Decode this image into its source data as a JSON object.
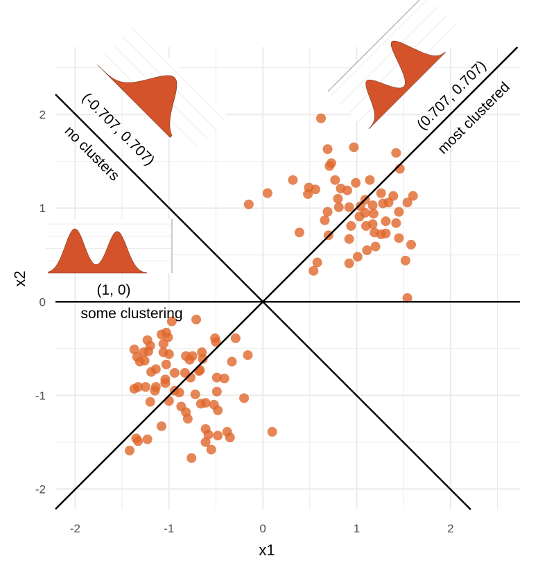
{
  "chart_data": {
    "type": "scatter",
    "xlabel": "x1",
    "ylabel": "x2",
    "xlim": [
      -2.21,
      2.74
    ],
    "ylim": [
      -2.22,
      2.72
    ],
    "xticks": [
      "-2",
      "-1",
      "0",
      "1",
      "2"
    ],
    "xtick_values": [
      -2,
      -1,
      0,
      1,
      2
    ],
    "yticks": [
      "-2",
      "-1",
      "0",
      "1",
      "2"
    ],
    "ytick_values": [
      -2,
      -1,
      0,
      1,
      2
    ],
    "grid": true,
    "colors": {
      "points": "#E0662A",
      "density": "#D4532A",
      "lines": "#000000",
      "grid": "#EBEBEB"
    },
    "reference_lines": [
      {
        "direction": [
          -0.707,
          0.707
        ],
        "label": "(-0.707, 0.707)",
        "caption": "no clusters",
        "density": "unimodal"
      },
      {
        "direction": [
          0.707,
          0.707
        ],
        "label": "(0.707, 0.707)",
        "caption": "most clustered",
        "density": "bimodal-separated"
      },
      {
        "direction": [
          1,
          0
        ],
        "label": "(1, 0)",
        "caption": "some clustering",
        "density": "bimodal-overlapping"
      }
    ],
    "points": [
      [
        0.62,
        1.96
      ],
      [
        0.69,
        1.63
      ],
      [
        0.97,
        1.65
      ],
      [
        1.42,
        1.59
      ],
      [
        0.73,
        1.48
      ],
      [
        0.71,
        1.45
      ],
      [
        1.46,
        1.42
      ],
      [
        0.32,
        1.3
      ],
      [
        0.77,
        1.3
      ],
      [
        0.99,
        1.27
      ],
      [
        1.14,
        1.3
      ],
      [
        0.49,
        1.22
      ],
      [
        0.56,
        1.2
      ],
      [
        0.48,
        1.15
      ],
      [
        0.83,
        1.21
      ],
      [
        0.9,
        1.19
      ],
      [
        0.05,
        1.16
      ],
      [
        -0.15,
        1.04
      ],
      [
        0.8,
        1.1
      ],
      [
        1.26,
        1.16
      ],
      [
        1.39,
        1.13
      ],
      [
        1.6,
        1.13
      ],
      [
        0.81,
        1.01
      ],
      [
        0.92,
        1.01
      ],
      [
        1.09,
        1.09
      ],
      [
        1.17,
        1.03
      ],
      [
        1.04,
        1.02
      ],
      [
        1.28,
        1.05
      ],
      [
        1.34,
        1.06
      ],
      [
        1.54,
        1.06
      ],
      [
        0.69,
        0.96
      ],
      [
        1.03,
        0.91
      ],
      [
        1.09,
        0.95
      ],
      [
        1.18,
        0.94
      ],
      [
        1.45,
        0.96
      ],
      [
        0.66,
        0.87
      ],
      [
        0.94,
        0.81
      ],
      [
        1.1,
        0.81
      ],
      [
        1.17,
        0.83
      ],
      [
        1.31,
        0.86
      ],
      [
        1.42,
        0.84
      ],
      [
        0.39,
        0.74
      ],
      [
        0.7,
        0.71
      ],
      [
        1.19,
        0.74
      ],
      [
        1.26,
        0.72
      ],
      [
        1.31,
        0.73
      ],
      [
        0.92,
        0.67
      ],
      [
        1.45,
        0.68
      ],
      [
        1.2,
        0.59
      ],
      [
        1.11,
        0.55
      ],
      [
        1.58,
        0.61
      ],
      [
        1.01,
        0.48
      ],
      [
        1.52,
        0.44
      ],
      [
        0.58,
        0.42
      ],
      [
        0.92,
        0.41
      ],
      [
        0.54,
        0.33
      ],
      [
        1.54,
        0.04
      ],
      [
        -0.97,
        -0.21
      ],
      [
        -0.71,
        -0.19
      ],
      [
        -1.08,
        -0.35
      ],
      [
        -1.03,
        -0.33
      ],
      [
        -1.01,
        -0.38
      ],
      [
        -1.23,
        -0.41
      ],
      [
        -1.2,
        -0.47
      ],
      [
        -1.06,
        -0.45
      ],
      [
        -0.51,
        -0.39
      ],
      [
        -0.5,
        -0.43
      ],
      [
        -0.29,
        -0.39
      ],
      [
        -1.37,
        -0.51
      ],
      [
        -1.27,
        -0.54
      ],
      [
        -1.22,
        -0.53
      ],
      [
        -1.06,
        -0.54
      ],
      [
        -1.0,
        -0.56
      ],
      [
        -1.34,
        -0.59
      ],
      [
        -1.31,
        -0.64
      ],
      [
        -1.26,
        -0.63
      ],
      [
        -0.82,
        -0.58
      ],
      [
        -0.75,
        -0.58
      ],
      [
        -0.78,
        -0.62
      ],
      [
        -0.65,
        -0.54
      ],
      [
        -0.64,
        -0.61
      ],
      [
        -0.16,
        -0.57
      ],
      [
        -0.33,
        -0.64
      ],
      [
        -1.03,
        -0.67
      ],
      [
        -1.19,
        -0.75
      ],
      [
        -1.14,
        -0.72
      ],
      [
        -0.94,
        -0.76
      ],
      [
        -0.83,
        -0.76
      ],
      [
        -0.67,
        -0.73
      ],
      [
        -0.68,
        -0.74
      ],
      [
        -0.77,
        -0.81
      ],
      [
        -0.49,
        -0.81
      ],
      [
        -0.41,
        -0.82
      ],
      [
        -1.04,
        -0.83
      ],
      [
        -1.04,
        -0.87
      ],
      [
        -1.37,
        -0.93
      ],
      [
        -1.33,
        -0.91
      ],
      [
        -1.25,
        -0.91
      ],
      [
        -1.14,
        -0.91
      ],
      [
        -1.15,
        -0.95
      ],
      [
        -0.94,
        -0.95
      ],
      [
        -0.89,
        -0.97
      ],
      [
        -0.49,
        -0.96
      ],
      [
        -0.72,
        -0.99
      ],
      [
        -0.2,
        -1.03
      ],
      [
        -1.2,
        -1.07
      ],
      [
        -1.0,
        -1.06
      ],
      [
        -0.66,
        -1.09
      ],
      [
        -0.61,
        -1.08
      ],
      [
        -0.52,
        -1.1
      ],
      [
        -0.48,
        -1.16
      ],
      [
        -0.87,
        -1.12
      ],
      [
        -0.82,
        -1.18
      ],
      [
        -0.8,
        -1.25
      ],
      [
        -1.08,
        -1.33
      ],
      [
        -0.61,
        -1.36
      ],
      [
        -0.58,
        -1.42
      ],
      [
        -0.48,
        -1.43
      ],
      [
        -0.38,
        -1.39
      ],
      [
        -0.35,
        -1.45
      ],
      [
        -1.35,
        -1.46
      ],
      [
        -1.33,
        -1.49
      ],
      [
        -1.23,
        -1.47
      ],
      [
        0.1,
        -1.39
      ],
      [
        -0.61,
        -1.5
      ],
      [
        -0.55,
        -1.58
      ],
      [
        -1.42,
        -1.59
      ],
      [
        -0.76,
        -1.67
      ]
    ]
  }
}
